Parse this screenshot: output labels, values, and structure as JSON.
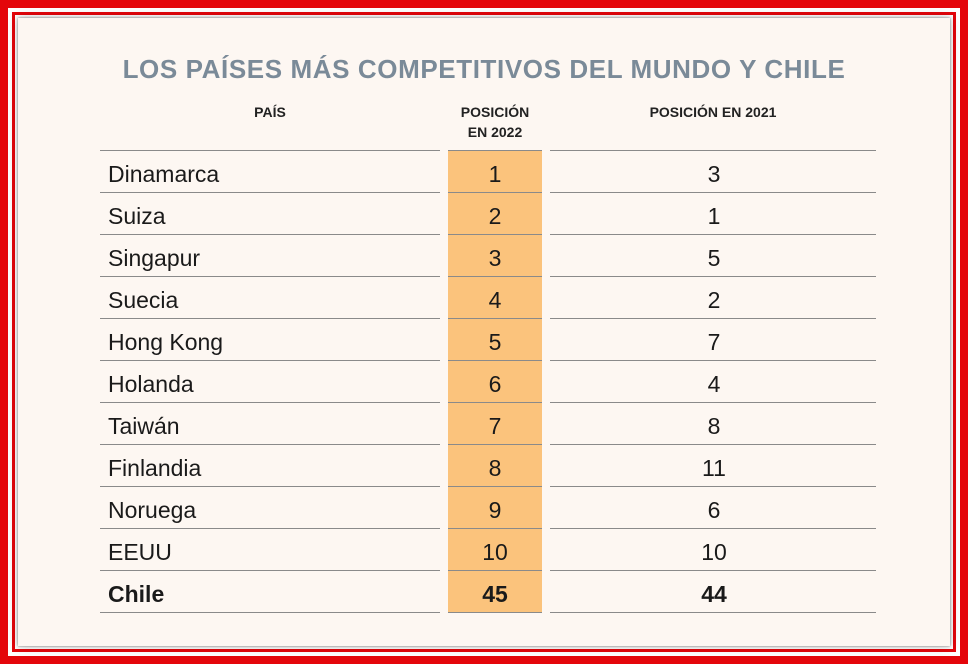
{
  "title": "LOS PAÍSES MÁS COMPETITIVOS DEL MUNDO Y CHILE",
  "colors": {
    "frame": "#e4060b",
    "highlight": "#fbc37c",
    "title": "#7a8a98",
    "panel": "#fdf7f2"
  },
  "chart_data": {
    "type": "table",
    "title": "LOS PAÍSES MÁS COMPETITIVOS DEL MUNDO Y CHILE",
    "columns": [
      "PAÍS",
      "POSICIÓN EN 2022",
      "POSICIÓN EN 2021"
    ],
    "columns_display": {
      "pais": "PAÍS",
      "pos2022_line1": "POSICIÓN",
      "pos2022_line2": "EN 2022",
      "pos2021": "POSICIÓN EN 2021"
    },
    "rows": [
      {
        "country": "Dinamarca",
        "pos_2022": "1",
        "pos_2021": "3"
      },
      {
        "country": "Suiza",
        "pos_2022": "2",
        "pos_2021": "1"
      },
      {
        "country": "Singapur",
        "pos_2022": "3",
        "pos_2021": "5"
      },
      {
        "country": "Suecia",
        "pos_2022": "4",
        "pos_2021": "2"
      },
      {
        "country": "Hong Kong",
        "pos_2022": "5",
        "pos_2021": "7"
      },
      {
        "country": "Holanda",
        "pos_2022": "6",
        "pos_2021": "4"
      },
      {
        "country": "Taiwán",
        "pos_2022": "7",
        "pos_2021": "8"
      },
      {
        "country": "Finlandia",
        "pos_2022": "8",
        "pos_2021": "11"
      },
      {
        "country": "Noruega",
        "pos_2022": "9",
        "pos_2021": "6"
      },
      {
        "country": "EEUU",
        "pos_2022": "10",
        "pos_2021": "10"
      },
      {
        "country": "Chile",
        "pos_2022": "45",
        "pos_2021": "44",
        "bold": true
      }
    ]
  }
}
